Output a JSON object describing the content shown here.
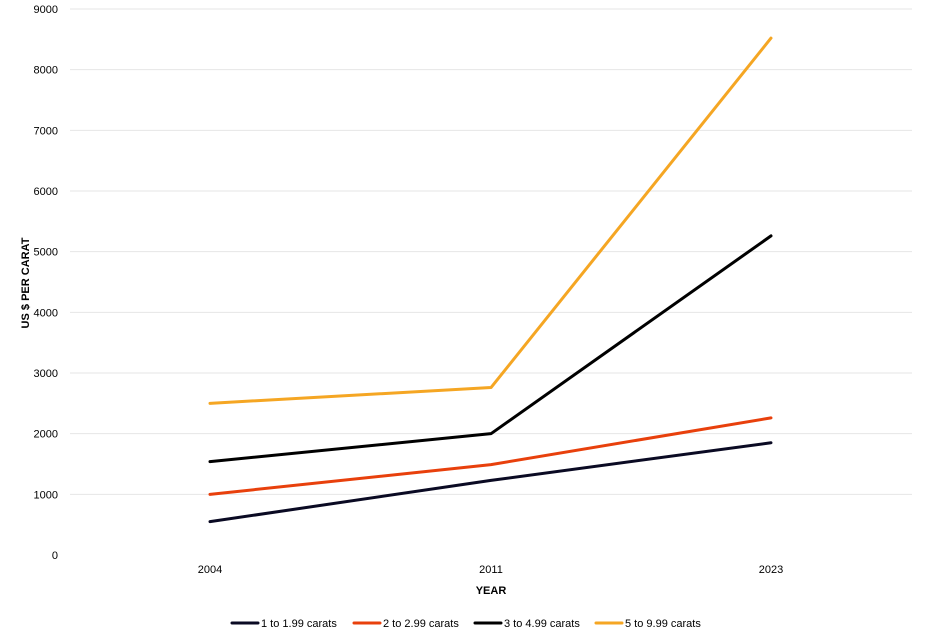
{
  "chart_data": {
    "type": "line",
    "title": "",
    "xlabel": "YEAR",
    "ylabel": "US $ PER CARAT",
    "x": [
      "2004",
      "2011",
      "2023"
    ],
    "ylim": [
      0,
      9000
    ],
    "yticks": [
      0,
      1000,
      2000,
      3000,
      4000,
      5000,
      6000,
      7000,
      8000,
      9000
    ],
    "grid": true,
    "legend_position": "bottom",
    "series": [
      {
        "name": "1 to 1.99 carats",
        "color": "#0a0a23",
        "values": [
          550,
          1230,
          1850
        ]
      },
      {
        "name": "2 to 2.99 carats",
        "color": "#e8400c",
        "values": [
          1000,
          1490,
          2260
        ]
      },
      {
        "name": "3 to 4.99 carats",
        "color": "#000000",
        "values": [
          1540,
          2000,
          5260
        ]
      },
      {
        "name": "5 to 9.99 carats",
        "color": "#f5a623",
        "values": [
          2500,
          2760,
          8520
        ]
      }
    ]
  }
}
